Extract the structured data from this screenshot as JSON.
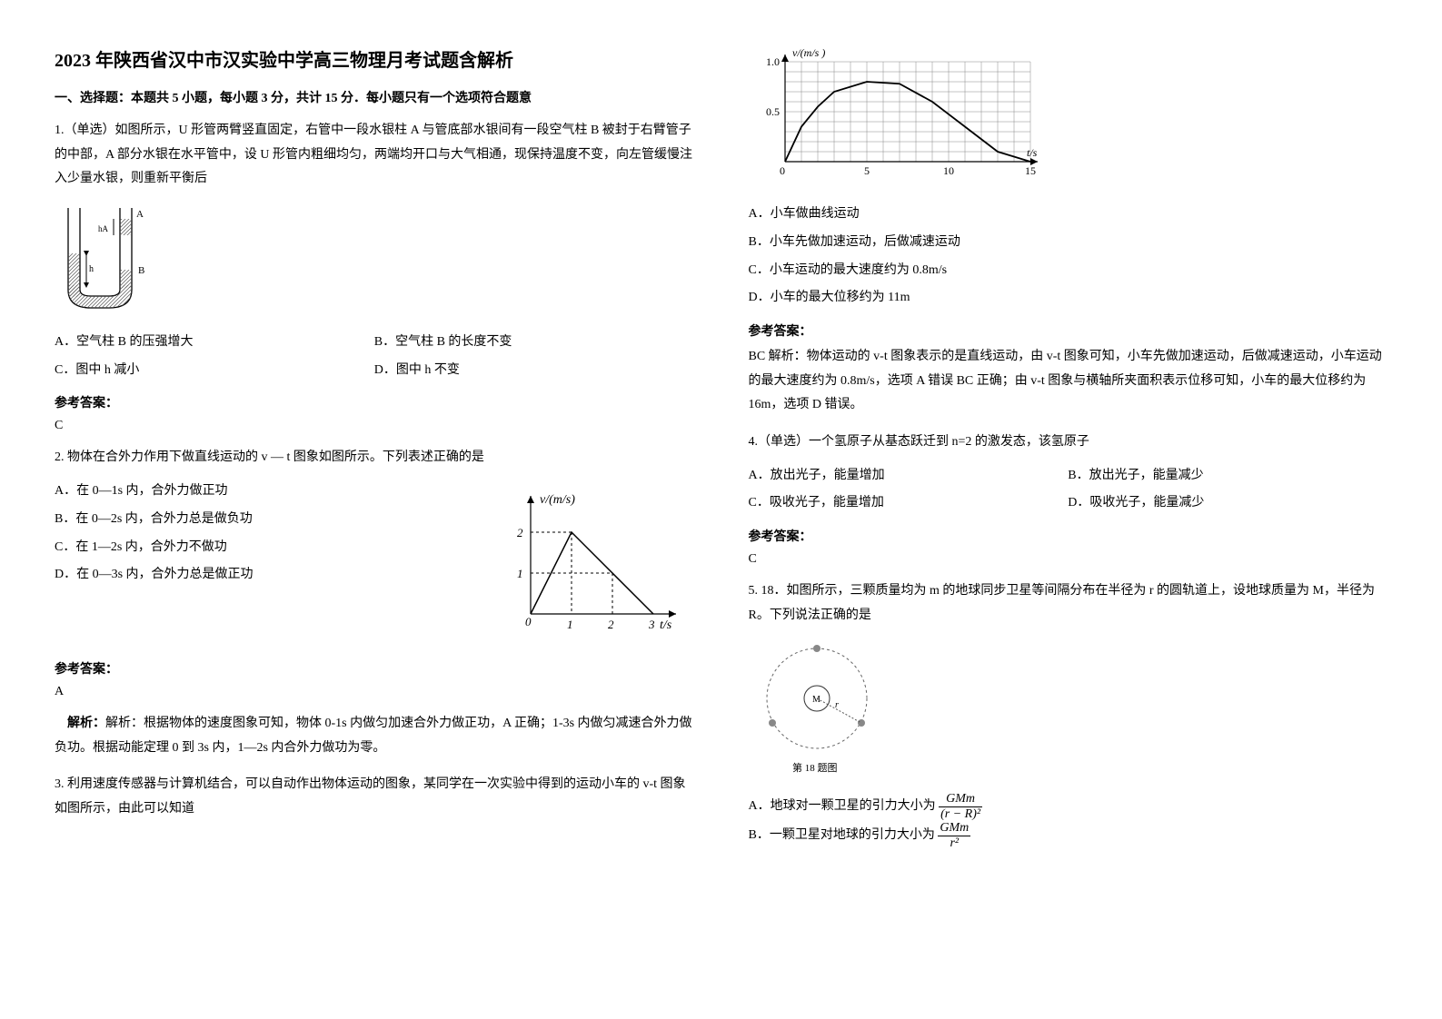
{
  "title": "2023 年陕西省汉中市汉实验中学高三物理月考试题含解析",
  "sectionHead": "一、选择题：本题共 5 小题，每小题 3 分，共计 15 分．每小题只有一个选项符合题意",
  "q1": {
    "stem": "1.（单选）如图所示，U 形管两臂竖直固定，右管中一段水银柱 A 与管底部水银间有一段空气柱 B 被封于右臂管子的中部，A 部分水银在水平管中，设 U 形管内粗细均匀，两端均开口与大气相通，现保持温度不变，向左管缓慢注入少量水银，则重新平衡后",
    "opts": {
      "A": "A．空气柱 B 的压强增大",
      "B": "B．空气柱 B 的长度不变",
      "C": "C．图中 h 减小",
      "D": "D．图中 h 不变"
    },
    "answerLabel": "参考答案：",
    "answer": "C",
    "diagram": {
      "labelA": "A",
      "labelB": "B",
      "h": "h",
      "hA": "hA"
    }
  },
  "q2": {
    "stem": "2. 物体在合外力作用下做直线运动的 v — t 图象如图所示。下列表述正确的是",
    "opts": {
      "A": "A．在 0—1s 内，合外力做正功",
      "B": "B．在 0—2s 内，合外力总是做负功",
      "C": "C．在 1—2s 内，合外力不做功",
      "D": "D．在 0—3s 内，合外力总是做正功"
    },
    "answerLabel": "参考答案：",
    "answer": "A",
    "solution": "解析：根据物体的速度图象可知，物体 0-1s 内做匀加速合外力做正功，A 正确；1-3s 内做匀减速合外力做负功。根据动能定理 0 到 3s 内，1—2s 内合外力做功为零。",
    "graph": {
      "yLabel": "v/(m/s)",
      "xLabel": "t/s",
      "yTicks": [
        "1",
        "2"
      ],
      "xTicks": [
        "0",
        "1",
        "2",
        "3"
      ],
      "axisColor": "#000",
      "dashColor": "#000",
      "lineColor": "#000"
    }
  },
  "q3": {
    "stem": "3. 利用速度传感器与计算机结合，可以自动作出物体运动的图象，某同学在一次实验中得到的运动小车的 v-t 图象如图所示，由此可以知道",
    "opts": {
      "A": "A．小车做曲线运动",
      "B": "B．小车先做加速运动，后做减速运动",
      "C": "C．小车运动的最大速度约为 0.8m/s",
      "D": "D．小车的最大位移约为 11m"
    },
    "answerLabel": "参考答案：",
    "answer": "BC 解析：物体运动的 v-t 图象表示的是直线运动，由 v-t 图象可知，小车先做加速运动，后做减速运动，小车运动的最大速度约为 0.8m/s，选项 A 错误 BC 正确；由 v-t 图象与横轴所夹面积表示位移可知，小车的最大位移约为 16m，选项 D 错误。",
    "graph": {
      "yLabel": "v/(m/s )",
      "xLabel": "t/s",
      "yTicks": [
        "0",
        "0.5",
        "1.0"
      ],
      "xTicks": [
        "0",
        "5",
        "10",
        "15"
      ],
      "axisColor": "#000",
      "gridColor": "#888",
      "curveColor": "#000",
      "curve": [
        [
          0,
          0
        ],
        [
          1,
          0.35
        ],
        [
          2,
          0.55
        ],
        [
          3,
          0.7
        ],
        [
          5,
          0.8
        ],
        [
          7,
          0.78
        ],
        [
          9,
          0.6
        ],
        [
          11,
          0.35
        ],
        [
          13,
          0.1
        ],
        [
          14,
          0.05
        ],
        [
          15,
          0
        ]
      ]
    }
  },
  "q4": {
    "stem": "4.（单选）一个氢原子从基态跃迁到 n=2 的激发态，该氢原子",
    "opts": {
      "A": "A．放出光子，能量增加",
      "B": "B．放出光子，能量减少",
      "C": "C．吸收光子，能量增加",
      "D": "D．吸收光子，能量减少"
    },
    "answerLabel": "参考答案：",
    "answer": "C"
  },
  "q5": {
    "stem": "5. 18．如图所示，三颗质量均为 m 的地球同步卫星等间隔分布在半径为 r 的圆轨道上，设地球质量为 M，半径为 R。下列说法正确的是",
    "opts": {
      "A": "A．地球对一颗卫星的引力大小为",
      "B": "B．一颗卫星对地球的引力大小为"
    },
    "fracA": {
      "num": "GMm",
      "den": "(r − R)²"
    },
    "fracB": {
      "num": "GMm",
      "den": "r²"
    },
    "diagram": {
      "caption": "第 18 题图",
      "centerLabel": "M",
      "r": "r"
    }
  }
}
